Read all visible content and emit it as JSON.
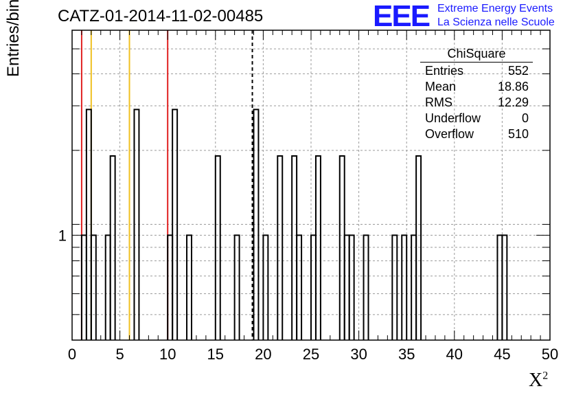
{
  "header": {
    "title": "CATZ-01-2014-11-02-00485",
    "logo_text": "EEE",
    "org_line1": "Extreme Energy Events",
    "org_line2": "La Scienza nelle Scuole"
  },
  "stats_box": {
    "title": "ChiSquare",
    "rows": [
      {
        "label": "Entries",
        "value": "552"
      },
      {
        "label": "Mean",
        "value": "18.86"
      },
      {
        "label": "RMS",
        "value": "12.29"
      },
      {
        "label": "Underflow",
        "value": "0"
      },
      {
        "label": "Overflow",
        "value": "510"
      }
    ]
  },
  "chart_data": {
    "type": "bar",
    "style": "step-histogram",
    "title": "CATZ-01-2014-11-02-00485",
    "xlabel": "X²",
    "ylabel": "Entries/bin",
    "xlim": [
      0,
      50
    ],
    "ylim": [
      0.4,
      6
    ],
    "y_scale": "log",
    "grid": true,
    "x_ticks": [
      "0",
      "5",
      "10",
      "15",
      "20",
      "25",
      "30",
      "35",
      "40",
      "45",
      "50"
    ],
    "y_tick_labels": [
      "1"
    ],
    "bin_width": 0.5,
    "bins": [
      {
        "x": 1.0,
        "value": 1
      },
      {
        "x": 1.5,
        "value": 3
      },
      {
        "x": 2.0,
        "value": 1
      },
      {
        "x": 3.5,
        "value": 1
      },
      {
        "x": 4.0,
        "value": 2
      },
      {
        "x": 6.5,
        "value": 3
      },
      {
        "x": 10.0,
        "value": 1
      },
      {
        "x": 10.5,
        "value": 3
      },
      {
        "x": 12.0,
        "value": 1
      },
      {
        "x": 15.0,
        "value": 2
      },
      {
        "x": 17.0,
        "value": 1
      },
      {
        "x": 19.0,
        "value": 3
      },
      {
        "x": 20.0,
        "value": 1
      },
      {
        "x": 21.5,
        "value": 2
      },
      {
        "x": 23.0,
        "value": 2
      },
      {
        "x": 23.5,
        "value": 1
      },
      {
        "x": 25.0,
        "value": 1
      },
      {
        "x": 25.5,
        "value": 2
      },
      {
        "x": 28.0,
        "value": 2
      },
      {
        "x": 28.5,
        "value": 1
      },
      {
        "x": 29.0,
        "value": 1
      },
      {
        "x": 30.5,
        "value": 1
      },
      {
        "x": 33.5,
        "value": 1
      },
      {
        "x": 34.5,
        "value": 1
      },
      {
        "x": 35.5,
        "value": 1
      },
      {
        "x": 36.0,
        "value": 2
      },
      {
        "x": 44.5,
        "value": 1
      },
      {
        "x": 45.0,
        "value": 1
      }
    ],
    "reference_lines": [
      {
        "x": 1.0,
        "color": "#e02020",
        "style": "solid"
      },
      {
        "x": 2.0,
        "color": "#f0c020",
        "style": "solid"
      },
      {
        "x": 6.0,
        "color": "#f0c020",
        "style": "solid"
      },
      {
        "x": 10.0,
        "color": "#e02020",
        "style": "solid"
      },
      {
        "x": 18.86,
        "color": "#000000",
        "style": "dashed"
      }
    ]
  },
  "colors": {
    "logo": "#1a1aff",
    "histogram": "#000000",
    "grid": "#9a9a9a"
  }
}
